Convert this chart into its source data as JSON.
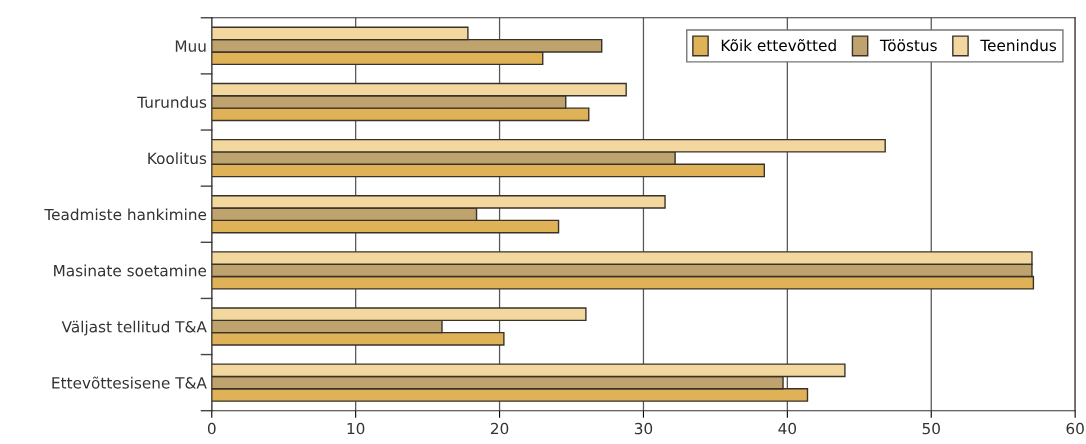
{
  "chart_data": {
    "type": "bar",
    "orientation": "horizontal",
    "categories": [
      "Muu",
      "Turundus",
      "Koolitus",
      "Teadmiste hankimine",
      "Masinate soetamine",
      "Väljast tellitud T&A",
      "Ettevõttesisene T&A"
    ],
    "series": [
      {
        "name": "Kõik ettevõtted",
        "color": "#dfb257",
        "values": [
          23.0,
          26.2,
          38.4,
          24.1,
          57.1,
          20.3,
          41.4
        ]
      },
      {
        "name": "Tööstus",
        "color": "#bfa36e",
        "values": [
          27.1,
          24.6,
          32.2,
          18.4,
          57.0,
          16.0,
          39.7
        ]
      },
      {
        "name": "Teenindus",
        "color": "#f2d89e",
        "values": [
          17.8,
          28.8,
          46.8,
          31.5,
          57.0,
          26.0,
          44.0
        ]
      }
    ],
    "xlim": [
      0,
      60
    ],
    "xticks": [
      0,
      10,
      20,
      30,
      40,
      50,
      60
    ],
    "grid": "x",
    "legend": "top right"
  }
}
